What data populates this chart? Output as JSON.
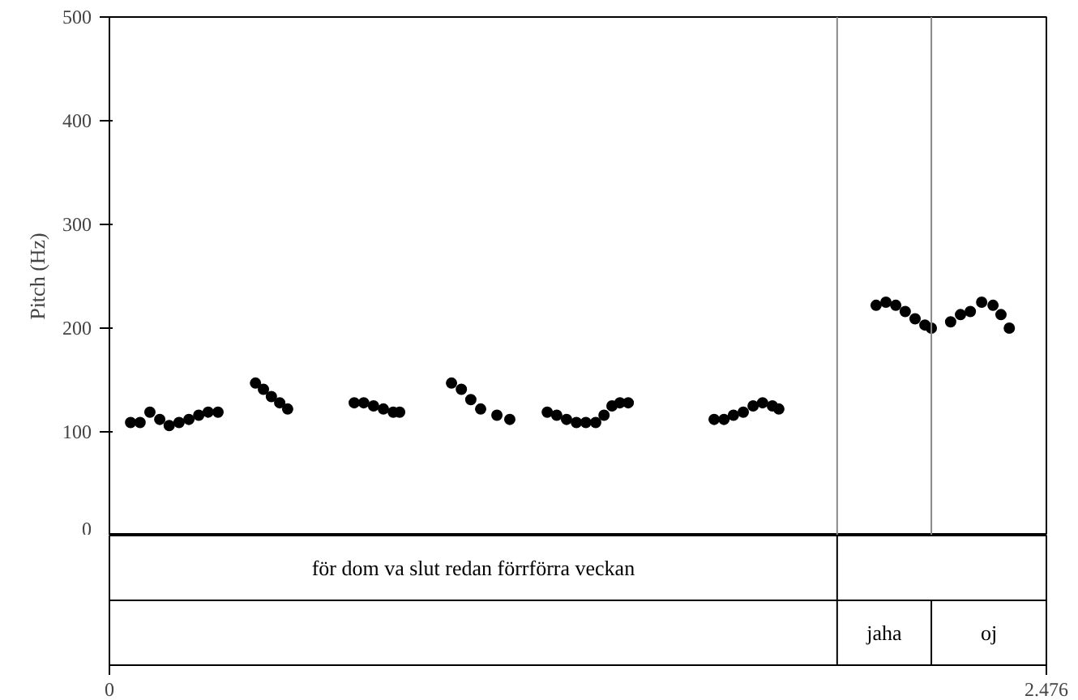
{
  "chart_data": {
    "type": "scatter",
    "ylabel": "Pitch (Hz)",
    "color": "#000000",
    "marker": "circle",
    "grid": false,
    "xlim": [
      0,
      2.476
    ],
    "xticks": [
      0,
      2.476
    ],
    "ylim": [
      0,
      500
    ],
    "yticks": [
      0,
      100,
      200,
      300,
      400,
      500
    ],
    "x": [
      0.056,
      0.081,
      0.107,
      0.133,
      0.158,
      0.184,
      0.21,
      0.236,
      0.261,
      0.287,
      0.386,
      0.407,
      0.428,
      0.45,
      0.471,
      0.647,
      0.672,
      0.698,
      0.724,
      0.75,
      0.767,
      0.904,
      0.93,
      0.955,
      0.981,
      1.024,
      1.058,
      1.157,
      1.182,
      1.208,
      1.234,
      1.259,
      1.285,
      1.307,
      1.328,
      1.349,
      1.371,
      1.598,
      1.624,
      1.649,
      1.675,
      1.701,
      1.726,
      1.752,
      1.769,
      2.026,
      2.052,
      2.078,
      2.103,
      2.129,
      2.155,
      2.172,
      2.223,
      2.249,
      2.275,
      2.305,
      2.335,
      2.356,
      2.378
    ],
    "values": [
      109,
      109,
      119,
      112,
      106,
      109,
      112,
      116,
      119,
      119,
      147,
      141,
      134,
      128,
      122,
      128,
      128,
      125,
      122,
      119,
      119,
      147,
      141,
      131,
      122,
      116,
      112,
      119,
      116,
      112,
      109,
      109,
      109,
      116,
      125,
      128,
      128,
      112,
      112,
      116,
      119,
      125,
      128,
      125,
      122,
      222,
      225,
      222,
      216,
      209,
      203,
      200,
      206,
      213,
      216,
      225,
      222,
      213,
      200
    ],
    "ref_lines": [
      {
        "axis": "x",
        "value": 1.923,
        "label": null,
        "color": "#888888"
      },
      {
        "axis": "x",
        "value": 2.172,
        "label": null,
        "color": "#888888"
      }
    ],
    "annotations": [
      "för dom va slut redan förrförra veckan",
      "jaha",
      "oj"
    ]
  }
}
